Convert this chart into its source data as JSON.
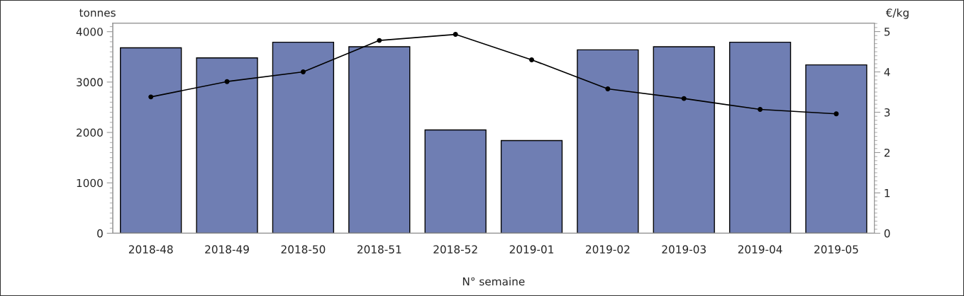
{
  "chart_data": {
    "type": "bar",
    "categories": [
      "2018-48",
      "2018-49",
      "2018-50",
      "2018-51",
      "2018-52",
      "2019-01",
      "2019-02",
      "2019-03",
      "2019-04",
      "2019-05"
    ],
    "xlabel": "N° semaine",
    "ylabel": "tonnes",
    "y2label": "€/kg",
    "series": [
      {
        "color": "#6f7eb3",
        "values": [
          3680,
          3480,
          3790,
          3700,
          2050,
          1840,
          3640,
          3700,
          3790,
          3340
        ]
      },
      {
        "type": "line",
        "axis": "y2",
        "color": "#000000",
        "marker": "circle",
        "line_style": "solid",
        "values": [
          3.38,
          3.76,
          4.0,
          4.78,
          4.93,
          4.3,
          3.58,
          3.34,
          3.07,
          2.96
        ]
      }
    ],
    "ylim": [
      0,
      4170
    ],
    "yticks": [
      0,
      1000,
      2000,
      3000,
      4000
    ],
    "y2lim": [
      0,
      5.21
    ],
    "y2ticks": [
      0,
      1,
      2,
      3,
      4,
      5
    ],
    "grid": false,
    "legend": false
  }
}
